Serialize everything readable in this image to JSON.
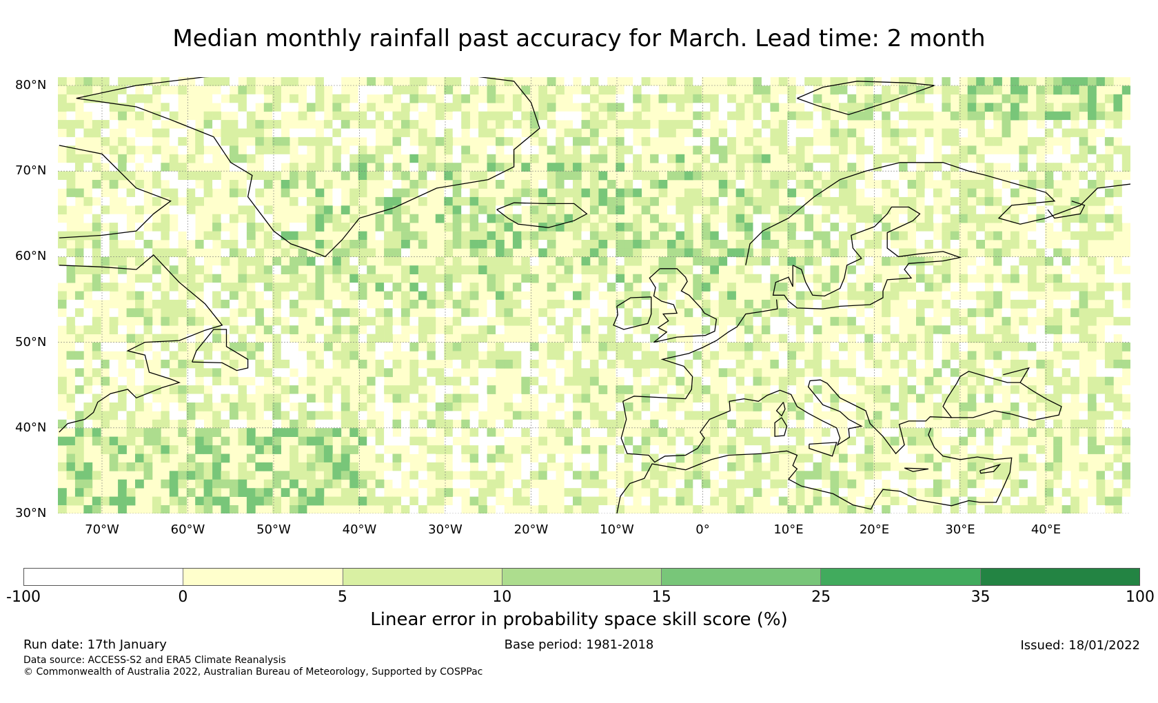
{
  "title": "Median monthly rainfall past accuracy for March. Lead time: 2 month",
  "map": {
    "lat_labels": [
      "80°N",
      "70°N",
      "60°N",
      "50°N",
      "40°N",
      "30°N"
    ],
    "lon_labels": [
      "70°W",
      "60°W",
      "50°W",
      "40°W",
      "30°W",
      "20°W",
      "10°W",
      "0°",
      "10°E",
      "20°E",
      "30°E",
      "40°E"
    ],
    "lon_range": [
      -75,
      50
    ],
    "lat_range": [
      30,
      81
    ],
    "coastline_color": "#000000"
  },
  "colorbar": {
    "bounds": [
      "-100",
      "0",
      "5",
      "10",
      "15",
      "25",
      "35",
      "100"
    ],
    "colors": [
      "#ffffff",
      "#ffffcc",
      "#d9f0a3",
      "#addd8e",
      "#78c679",
      "#41ab5d",
      "#238443"
    ],
    "label": "Linear error in probability space skill score (%)"
  },
  "footer": {
    "run_date": "Run date: 17th January",
    "base_period": "Base period: 1981-2018",
    "issued": "Issued: 18/01/2022",
    "data_source": "Data source: ACCESS-S2 and ERA5 Climate Reanalysis",
    "copyright": "© Commonwealth of Australia 2022, Australian Bureau of Meteorology, Supported by COSPPac"
  }
}
